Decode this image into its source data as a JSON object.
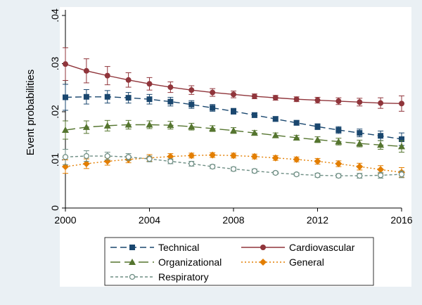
{
  "chart_data": {
    "type": "line",
    "ylabel": "Event probabilities",
    "xlabel": "",
    "x": [
      2000,
      2001,
      2002,
      2003,
      2004,
      2005,
      2006,
      2007,
      2008,
      2009,
      2010,
      2011,
      2012,
      2013,
      2014,
      2015,
      2016
    ],
    "xticks": [
      "2000",
      "2004",
      "2008",
      "2012",
      "2016"
    ],
    "yticks": [
      "0",
      ".01",
      ".02",
      ".03",
      ".04"
    ],
    "xlim": [
      2000,
      2016
    ],
    "ylim": [
      0,
      0.04
    ],
    "grid": false,
    "legend_position": "bottom",
    "series": [
      {
        "name": "Technical",
        "color": "#1a476f",
        "marker": "square",
        "dash": "dashed",
        "y": [
          0.023,
          0.0231,
          0.0231,
          0.0229,
          0.0226,
          0.0221,
          0.0215,
          0.0208,
          0.0201,
          0.0193,
          0.0185,
          0.0177,
          0.0169,
          0.0162,
          0.0156,
          0.015,
          0.0143
        ],
        "lo": [
          0.0203,
          0.0216,
          0.0218,
          0.0218,
          0.0216,
          0.0212,
          0.0207,
          0.0201,
          0.0195,
          0.0188,
          0.018,
          0.0172,
          0.0163,
          0.0155,
          0.0148,
          0.014,
          0.013
        ],
        "hi": [
          0.0257,
          0.0246,
          0.0244,
          0.024,
          0.0236,
          0.023,
          0.0223,
          0.0215,
          0.0207,
          0.0198,
          0.019,
          0.0182,
          0.0175,
          0.0169,
          0.0164,
          0.016,
          0.0156
        ]
      },
      {
        "name": "Cardiovascular",
        "color": "#90353b",
        "marker": "circle",
        "dash": "solid",
        "y": [
          0.0299,
          0.0285,
          0.0275,
          0.0266,
          0.0258,
          0.0251,
          0.0245,
          0.024,
          0.0236,
          0.0232,
          0.0229,
          0.0226,
          0.0224,
          0.0222,
          0.022,
          0.0218,
          0.0217
        ],
        "lo": [
          0.0265,
          0.026,
          0.0256,
          0.0251,
          0.0245,
          0.024,
          0.0236,
          0.0232,
          0.0229,
          0.0227,
          0.0224,
          0.0221,
          0.0218,
          0.0215,
          0.0212,
          0.0207,
          0.0201
        ],
        "hi": [
          0.0333,
          0.031,
          0.0294,
          0.0281,
          0.0271,
          0.0262,
          0.0254,
          0.0248,
          0.0243,
          0.0237,
          0.0234,
          0.0231,
          0.023,
          0.0229,
          0.0228,
          0.0229,
          0.0233
        ]
      },
      {
        "name": "Organizational",
        "color": "#55752f",
        "marker": "triangle",
        "dash": "longdash",
        "y": [
          0.0162,
          0.0168,
          0.0171,
          0.0173,
          0.0173,
          0.0172,
          0.0169,
          0.0165,
          0.0161,
          0.0156,
          0.0151,
          0.0146,
          0.0142,
          0.0138,
          0.0134,
          0.0131,
          0.0128
        ],
        "lo": [
          0.0143,
          0.0155,
          0.016,
          0.0164,
          0.0165,
          0.0164,
          0.0162,
          0.0159,
          0.0155,
          0.0151,
          0.0146,
          0.0141,
          0.0136,
          0.0131,
          0.0127,
          0.0122,
          0.0116
        ],
        "hi": [
          0.0181,
          0.0181,
          0.0182,
          0.0182,
          0.0181,
          0.018,
          0.0176,
          0.0171,
          0.0167,
          0.0161,
          0.0156,
          0.0151,
          0.0148,
          0.0145,
          0.0141,
          0.014,
          0.014
        ]
      },
      {
        "name": "General",
        "color": "#e37e00",
        "marker": "diamond",
        "dash": "dotted",
        "y": [
          0.0086,
          0.0092,
          0.0097,
          0.0101,
          0.0104,
          0.0107,
          0.0109,
          0.011,
          0.0109,
          0.0107,
          0.0104,
          0.0101,
          0.0097,
          0.0092,
          0.0086,
          0.008,
          0.0074
        ],
        "lo": [
          0.0072,
          0.0082,
          0.0089,
          0.0094,
          0.0097,
          0.0101,
          0.0104,
          0.0105,
          0.0104,
          0.0102,
          0.0099,
          0.0096,
          0.0091,
          0.0086,
          0.0079,
          0.0072,
          0.0064
        ],
        "hi": [
          0.01,
          0.0102,
          0.0105,
          0.0108,
          0.0111,
          0.0113,
          0.0114,
          0.0115,
          0.0114,
          0.0112,
          0.0109,
          0.0106,
          0.0103,
          0.0098,
          0.0093,
          0.0088,
          0.0084
        ]
      },
      {
        "name": "Respiratory",
        "color": "#6e8e84",
        "marker": "hollow-circle",
        "dash": "shortdash",
        "y": [
          0.0106,
          0.0108,
          0.0108,
          0.0106,
          0.0102,
          0.0097,
          0.0092,
          0.0086,
          0.0081,
          0.0077,
          0.0073,
          0.007,
          0.0068,
          0.0067,
          0.0067,
          0.0068,
          0.007
        ],
        "lo": [
          0.009,
          0.0097,
          0.01,
          0.0099,
          0.0096,
          0.0092,
          0.0087,
          0.0082,
          0.0077,
          0.0073,
          0.007,
          0.0067,
          0.0064,
          0.0063,
          0.0062,
          0.0062,
          0.0063
        ],
        "hi": [
          0.0122,
          0.0119,
          0.0116,
          0.0113,
          0.0108,
          0.0102,
          0.0097,
          0.009,
          0.0085,
          0.0081,
          0.0076,
          0.0073,
          0.0072,
          0.0071,
          0.0072,
          0.0074,
          0.0077
        ]
      }
    ]
  }
}
